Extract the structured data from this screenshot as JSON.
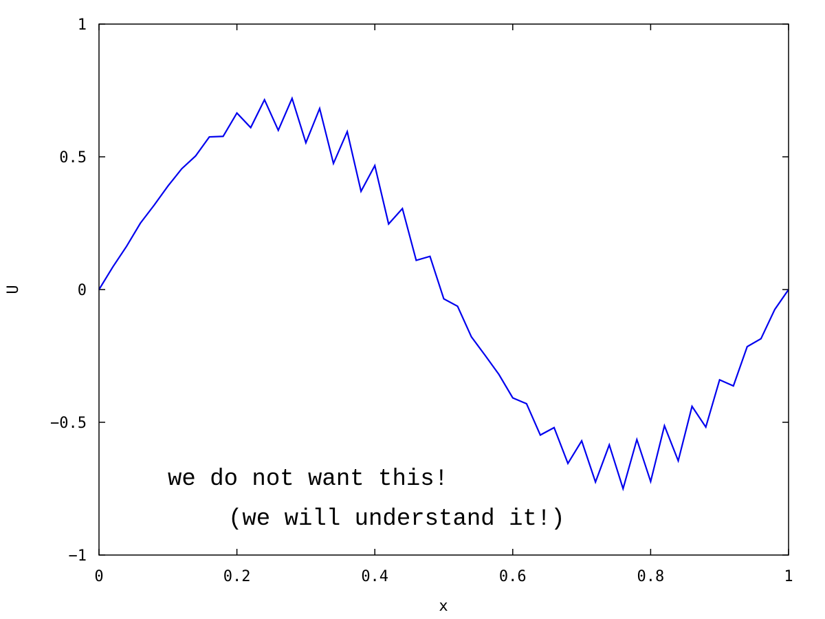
{
  "chart_data": {
    "type": "line",
    "title": "",
    "xlabel": "x",
    "ylabel": "U",
    "xlim": [
      0,
      1
    ],
    "ylim": [
      -1,
      1
    ],
    "xticks": [
      0,
      0.2,
      0.4,
      0.6,
      0.8,
      1
    ],
    "xtick_labels": [
      "0",
      "0.2",
      "0.4",
      "0.6",
      "0.8",
      "1"
    ],
    "yticks": [
      -1,
      -0.5,
      0,
      0.5,
      1
    ],
    "ytick_labels": [
      "−1",
      "−0.5",
      "0",
      "0.5",
      "1"
    ],
    "grid": false,
    "series": [
      {
        "color": "#0000ee",
        "x": [
          0,
          0.02,
          0.04,
          0.06,
          0.08,
          0.1,
          0.12,
          0.14,
          0.16,
          0.18,
          0.2,
          0.22,
          0.24,
          0.26,
          0.28,
          0.3,
          0.32,
          0.34,
          0.36,
          0.38,
          0.4,
          0.42,
          0.44,
          0.46,
          0.48,
          0.5,
          0.52,
          0.54,
          0.56,
          0.58,
          0.6,
          0.62,
          0.64,
          0.66,
          0.68,
          0.7,
          0.72,
          0.74,
          0.76,
          0.78,
          0.8,
          0.82,
          0.84,
          0.86,
          0.88,
          0.9,
          0.92,
          0.94,
          0.96,
          0.98,
          1.0
        ],
        "y": [
          0,
          0.085,
          0.163,
          0.25,
          0.318,
          0.39,
          0.455,
          0.503,
          0.575,
          0.577,
          0.665,
          0.61,
          0.715,
          0.6,
          0.72,
          0.553,
          0.682,
          0.475,
          0.595,
          0.37,
          0.467,
          0.247,
          0.305,
          0.11,
          0.125,
          -0.035,
          -0.063,
          -0.178,
          -0.248,
          -0.32,
          -0.408,
          -0.43,
          -0.548,
          -0.52,
          -0.655,
          -0.57,
          -0.725,
          -0.585,
          -0.75,
          -0.565,
          -0.723,
          -0.513,
          -0.645,
          -0.44,
          -0.518,
          -0.34,
          -0.363,
          -0.215,
          -0.185,
          -0.075,
          0
        ]
      }
    ],
    "annotations": [
      "we do not want this!",
      "(we will understand it!)"
    ]
  }
}
